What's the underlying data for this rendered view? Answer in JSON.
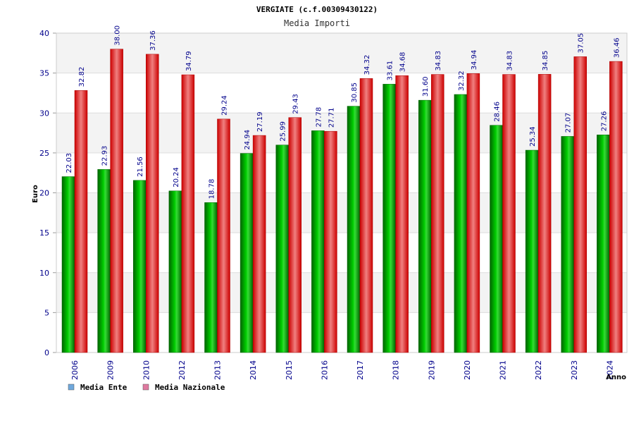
{
  "chart_data": {
    "type": "bar",
    "title": "VERGIATE (c.f.00309430122)",
    "subtitle": "Media Importi",
    "xlabel": "Anno",
    "ylabel": "Euro",
    "ylim": [
      0,
      40
    ],
    "yticks": [
      0,
      5,
      10,
      15,
      20,
      25,
      30,
      35,
      40
    ],
    "grid": true,
    "legend_position": "bottom-left",
    "categories": [
      "2006",
      "2009",
      "2010",
      "2012",
      "2013",
      "2014",
      "2015",
      "2016",
      "2017",
      "2018",
      "2019",
      "2020",
      "2021",
      "2022",
      "2023",
      "2024"
    ],
    "series": [
      {
        "name": "Media Ente",
        "color": "#00aa00",
        "legend_color": "#6fa8dc",
        "values": [
          22.03,
          22.93,
          21.56,
          20.24,
          18.78,
          24.94,
          25.99,
          27.78,
          30.85,
          33.61,
          31.6,
          32.32,
          28.46,
          25.34,
          27.07,
          27.26
        ],
        "labels": [
          "22.03",
          "22.93",
          "21.56",
          "20.24",
          "18.78",
          "24.94",
          "25.99",
          "27.78",
          "30.85",
          "33.61",
          "31.60",
          "32.32",
          "28.46",
          "25.34",
          "27.07",
          "27.26"
        ]
      },
      {
        "name": "Media Nazionale",
        "color": "#dd0000",
        "legend_color": "#e07aa0",
        "values": [
          32.82,
          38.0,
          37.36,
          34.79,
          29.24,
          27.19,
          29.43,
          27.71,
          34.32,
          34.68,
          34.83,
          34.94,
          34.83,
          34.85,
          37.05,
          36.46
        ],
        "labels": [
          "32.82",
          "38.00",
          "37.36",
          "34.79",
          "29.24",
          "27.19",
          "29.43",
          "27.71",
          "34.32",
          "34.68",
          "34.83",
          "34.94",
          "34.83",
          "34.85",
          "37.05",
          "36.46"
        ]
      }
    ]
  }
}
